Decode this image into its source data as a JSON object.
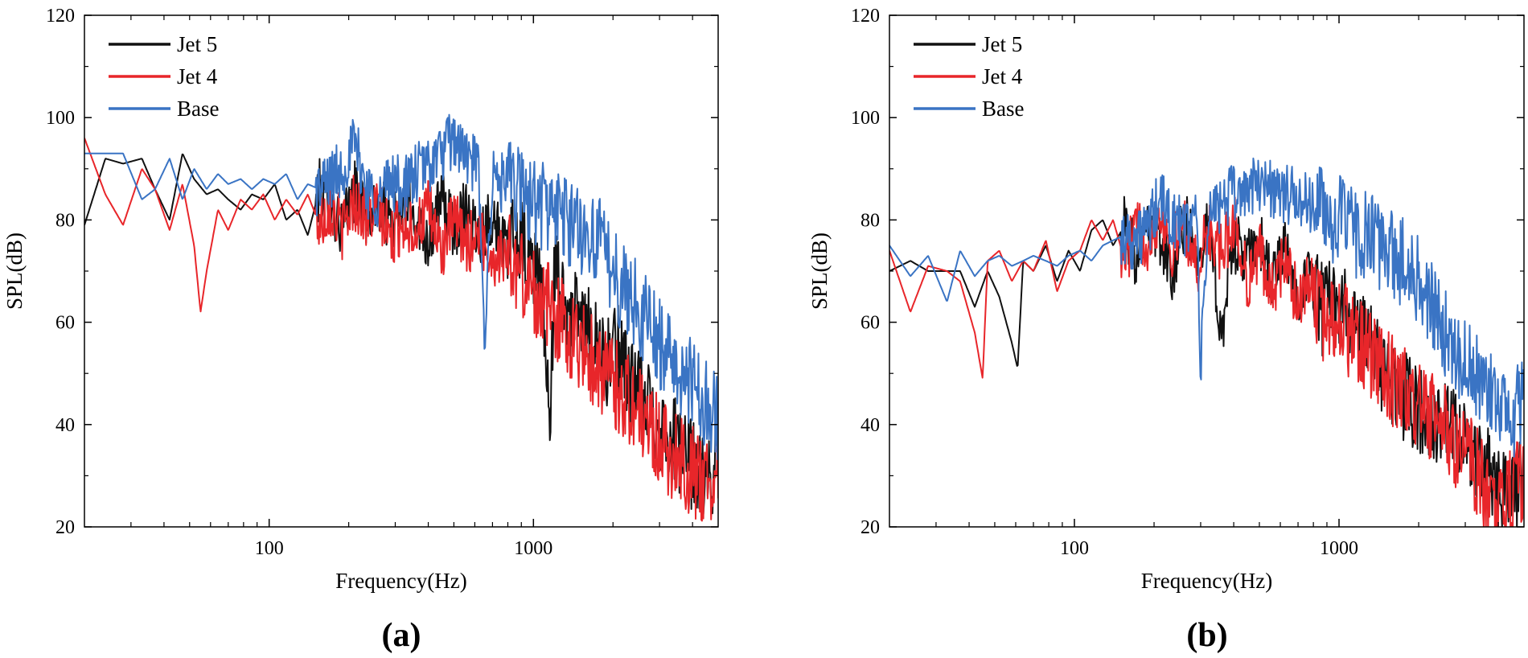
{
  "chart_data": [
    {
      "type": "line",
      "panel_label": "(a)",
      "xlabel": "Frequency(Hz)",
      "ylabel": "SPL(dB)",
      "xscale": "log",
      "xlim": [
        20,
        5000
      ],
      "ylim": [
        20,
        120
      ],
      "xticks": [
        100,
        1000
      ],
      "xtick_labels": [
        "100",
        "1000"
      ],
      "yticks": [
        20,
        40,
        60,
        80,
        100,
        120
      ],
      "ytick_labels": [
        "20",
        "40",
        "60",
        "80",
        "100",
        "120"
      ],
      "legend": "top-left",
      "series": [
        {
          "name": "Jet 5",
          "color": "#111111",
          "x": [
            20,
            24,
            28,
            33,
            37,
            42,
            47,
            52,
            58,
            64,
            70,
            78,
            86,
            95,
            105,
            116,
            128,
            140,
            155,
            170,
            190,
            210,
            235,
            260,
            290,
            320,
            360,
            400,
            450,
            500,
            560,
            620,
            700,
            780,
            870,
            970,
            1080,
            1150,
            1200,
            1350,
            1500,
            1700,
            1900,
            2100,
            2400,
            2700,
            3000,
            3400,
            3800,
            4200,
            4600,
            5000
          ],
          "y": [
            79,
            92,
            91,
            92,
            86,
            80,
            93,
            88,
            85,
            86,
            84,
            82,
            85,
            84,
            87,
            80,
            82,
            77,
            86,
            83,
            78,
            86,
            81,
            83,
            79,
            82,
            81,
            76,
            84,
            78,
            83,
            77,
            81,
            74,
            76,
            72,
            68,
            38,
            70,
            62,
            60,
            58,
            52,
            55,
            47,
            44,
            40,
            37,
            33,
            31,
            28,
            36
          ]
        },
        {
          "name": "Jet 4",
          "color": "#e8262a",
          "x": [
            20,
            24,
            28,
            33,
            37,
            42,
            47,
            52,
            55,
            58,
            64,
            70,
            78,
            86,
            95,
            105,
            116,
            128,
            140,
            155,
            170,
            190,
            210,
            235,
            260,
            290,
            320,
            360,
            400,
            450,
            500,
            560,
            620,
            700,
            780,
            870,
            970,
            1080,
            1200,
            1350,
            1500,
            1700,
            1900,
            2100,
            2400,
            2700,
            3000,
            3400,
            3800,
            4200,
            4600,
            5000
          ],
          "y": [
            96,
            85,
            79,
            90,
            86,
            78,
            87,
            75,
            62,
            70,
            82,
            78,
            84,
            82,
            85,
            80,
            84,
            81,
            85,
            79,
            83,
            78,
            84,
            80,
            82,
            76,
            80,
            78,
            82,
            74,
            80,
            75,
            78,
            72,
            74,
            70,
            67,
            64,
            62,
            58,
            56,
            52,
            50,
            47,
            44,
            40,
            37,
            34,
            32,
            30,
            28,
            32
          ]
        },
        {
          "name": "Base",
          "color": "#3a74c4",
          "x": [
            20,
            24,
            28,
            33,
            37,
            42,
            47,
            52,
            58,
            64,
            70,
            78,
            86,
            95,
            105,
            116,
            128,
            140,
            155,
            170,
            190,
            210,
            235,
            260,
            290,
            320,
            360,
            400,
            450,
            500,
            530,
            560,
            620,
            650,
            700,
            780,
            870,
            970,
            1080,
            1200,
            1350,
            1500,
            1700,
            1900,
            2100,
            2400,
            2700,
            3000,
            3400,
            3800,
            4200,
            4600,
            5000
          ],
          "y": [
            93,
            93,
            93,
            84,
            86,
            92,
            84,
            90,
            86,
            89,
            87,
            88,
            86,
            88,
            87,
            89,
            84,
            87,
            86,
            88,
            90,
            95,
            86,
            84,
            88,
            86,
            89,
            91,
            93,
            96,
            94,
            92,
            90,
            57,
            88,
            87,
            86,
            84,
            83,
            82,
            80,
            78,
            77,
            73,
            68,
            64,
            60,
            56,
            52,
            49,
            46,
            44,
            42
          ]
        }
      ]
    },
    {
      "type": "line",
      "panel_label": "(b)",
      "xlabel": "Frequency(Hz)",
      "ylabel": "SPL(dB)",
      "xscale": "log",
      "xlim": [
        20,
        5000
      ],
      "ylim": [
        20,
        120
      ],
      "xticks": [
        100,
        1000
      ],
      "xtick_labels": [
        "100",
        "1000"
      ],
      "yticks": [
        20,
        40,
        60,
        80,
        100,
        120
      ],
      "ytick_labels": [
        "20",
        "40",
        "60",
        "80",
        "100",
        "120"
      ],
      "legend": "top-left",
      "series": [
        {
          "name": "Jet 5",
          "color": "#111111",
          "x": [
            20,
            24,
            28,
            33,
            37,
            42,
            47,
            52,
            58,
            61,
            64,
            70,
            78,
            86,
            95,
            105,
            116,
            128,
            140,
            155,
            170,
            190,
            210,
            235,
            260,
            290,
            320,
            360,
            400,
            450,
            500,
            560,
            620,
            700,
            780,
            870,
            970,
            1080,
            1200,
            1350,
            1500,
            1700,
            1900,
            2100,
            2400,
            2700,
            3000,
            3400,
            3800,
            4200,
            4600,
            5000
          ],
          "y": [
            70,
            72,
            70,
            70,
            70,
            63,
            70,
            65,
            56,
            51,
            72,
            70,
            75,
            68,
            74,
            70,
            78,
            80,
            75,
            79,
            73,
            82,
            76,
            70,
            80,
            74,
            78,
            58,
            76,
            72,
            76,
            68,
            74,
            66,
            70,
            62,
            66,
            60,
            58,
            54,
            50,
            46,
            44,
            42,
            40,
            38,
            35,
            33,
            30,
            28,
            27,
            30
          ]
        },
        {
          "name": "Jet 4",
          "color": "#e8262a",
          "x": [
            20,
            24,
            28,
            33,
            37,
            42,
            45,
            47,
            52,
            58,
            64,
            70,
            78,
            86,
            95,
            105,
            116,
            128,
            140,
            155,
            170,
            190,
            210,
            235,
            260,
            290,
            320,
            360,
            400,
            450,
            500,
            560,
            620,
            700,
            780,
            870,
            970,
            1080,
            1200,
            1350,
            1500,
            1700,
            1900,
            2100,
            2400,
            2700,
            3000,
            3400,
            3800,
            4200,
            4600,
            5000
          ],
          "y": [
            74,
            62,
            71,
            70,
            68,
            58,
            49,
            72,
            74,
            68,
            72,
            70,
            76,
            66,
            72,
            74,
            80,
            76,
            80,
            72,
            78,
            76,
            82,
            74,
            80,
            70,
            78,
            73,
            80,
            68,
            74,
            66,
            72,
            64,
            68,
            60,
            62,
            58,
            56,
            52,
            50,
            47,
            45,
            42,
            40,
            37,
            35,
            30,
            24,
            23,
            28,
            30
          ]
        },
        {
          "name": "Base",
          "color": "#3a74c4",
          "x": [
            20,
            24,
            28,
            33,
            37,
            42,
            47,
            52,
            58,
            64,
            70,
            78,
            86,
            95,
            105,
            116,
            128,
            140,
            155,
            170,
            190,
            210,
            235,
            260,
            290,
            300,
            320,
            360,
            400,
            450,
            500,
            530,
            560,
            620,
            700,
            780,
            870,
            970,
            1080,
            1200,
            1350,
            1500,
            1700,
            1900,
            2100,
            2400,
            2700,
            3000,
            3400,
            3800,
            4200,
            4600,
            5000
          ],
          "y": [
            75,
            69,
            73,
            64,
            74,
            69,
            72,
            73,
            71,
            72,
            73,
            72,
            71,
            73,
            74,
            72,
            75,
            76,
            77,
            76,
            78,
            84,
            80,
            78,
            82,
            50,
            80,
            84,
            85,
            86,
            87,
            88,
            86,
            85,
            84,
            83,
            82,
            80,
            79,
            77,
            76,
            74,
            72,
            70,
            66,
            60,
            56,
            52,
            48,
            45,
            43,
            42,
            45
          ]
        }
      ]
    }
  ]
}
